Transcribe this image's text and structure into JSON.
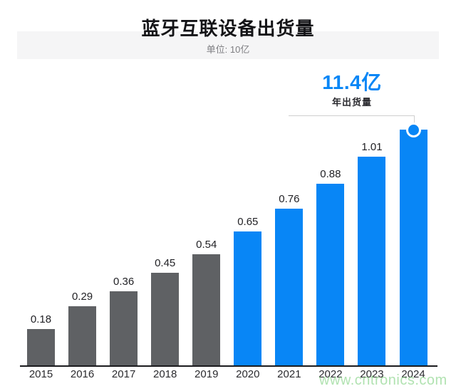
{
  "header": {
    "title": "蓝牙互联设备出货量",
    "subtitle": "单位: 10亿"
  },
  "callout": {
    "value": "11.4亿",
    "label": "年出货量"
  },
  "watermark": "www.cntronics.com",
  "colors": {
    "bar_blue": "#0886f6",
    "bar_gray": "#5f6164",
    "callout_blue": "#0886f6",
    "band_gray": "#f5f5f6",
    "leader_line": "#cfcfcf",
    "axis": "#1b1b1e",
    "watermark_green": "#a9dfa9"
  },
  "chart_data": {
    "type": "bar",
    "title": "蓝牙互联设备出货量",
    "unit_note": "单位: 10亿",
    "categories": [
      "2015",
      "2016",
      "2017",
      "2018",
      "2019",
      "2020",
      "2021",
      "2022",
      "2023",
      "2024"
    ],
    "values": [
      0.18,
      0.29,
      0.36,
      0.45,
      0.54,
      0.65,
      0.76,
      0.88,
      1.01,
      1.14
    ],
    "value_labels": [
      "0.18",
      "0.29",
      "0.36",
      "0.45",
      "0.54",
      "0.65",
      "0.76",
      "0.88",
      "1.01",
      ""
    ],
    "series_colors": [
      "gray",
      "gray",
      "gray",
      "gray",
      "gray",
      "blue",
      "blue",
      "blue",
      "blue",
      "blue"
    ],
    "xlabel": "",
    "ylabel": "",
    "ylim": [
      0,
      1.3
    ],
    "grid": false,
    "legend": false,
    "highlight": {
      "category": "2024",
      "value": 1.14,
      "display_value": "11.4亿",
      "display_label": "年出货量",
      "marker": "circle-on-bar-top"
    }
  }
}
